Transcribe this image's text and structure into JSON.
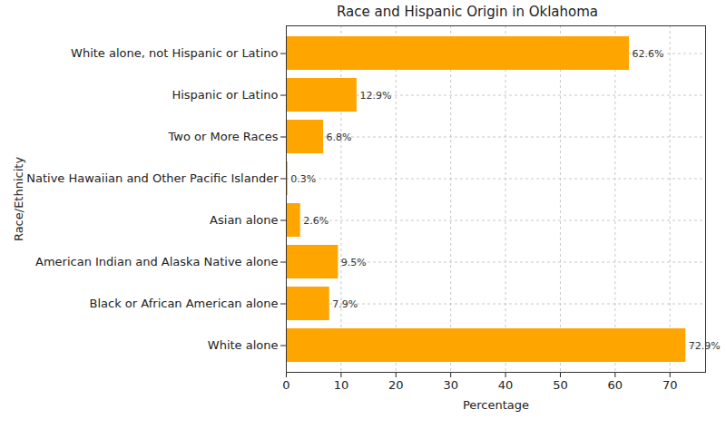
{
  "chart_data": {
    "type": "bar",
    "title": "Race and Hispanic Origin in Oklahoma",
    "orientation": "horizontal",
    "categories": [
      "White alone, not Hispanic or Latino",
      "Hispanic or Latino",
      "Two or More Races",
      "Native Hawaiian and Other Pacific Islander",
      "Asian alone",
      "American Indian and Alaska Native alone",
      "Black or African American alone",
      "White alone"
    ],
    "values": [
      62.6,
      12.9,
      6.8,
      0.3,
      2.6,
      9.5,
      7.9,
      72.9
    ],
    "value_labels": [
      "62.6%",
      "12.9%",
      "6.8%",
      "0.3%",
      "2.6%",
      "9.5%",
      "7.9%",
      "72.9%"
    ],
    "color": "#ffa500",
    "xlabel": "Percentage",
    "ylabel": "Race/Ethnicity",
    "xlim": [
      0,
      76.5
    ],
    "xticks": [
      0,
      10,
      20,
      30,
      40,
      50,
      60,
      70
    ],
    "grid": true,
    "data_labels": true
  }
}
